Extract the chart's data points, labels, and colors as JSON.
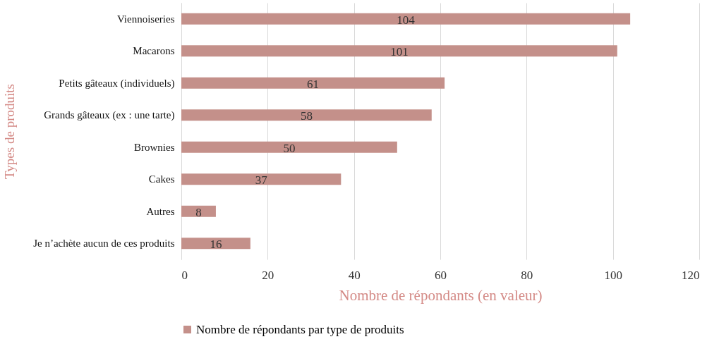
{
  "chart_data": {
    "type": "bar",
    "orientation": "horizontal",
    "ylabel": "Types de produits",
    "xlabel": "Nombre de répondants (en valeur)",
    "categories": [
      "Viennoiseries",
      "Macarons",
      "Petits gâteaux (individuels)",
      "Grands gâteaux (ex : une tarte)",
      "Brownies",
      "Cakes",
      "Autres",
      "Je n’achète aucun de ces produits"
    ],
    "series": [
      {
        "name": "Nombre de répondants par type de produits",
        "color": "#c4908a",
        "values": [
          104,
          101,
          61,
          58,
          50,
          37,
          8,
          16
        ]
      }
    ],
    "xlim": [
      0,
      120
    ],
    "xticks": [
      0,
      20,
      40,
      60,
      80,
      100,
      120
    ],
    "grid": "x",
    "legend": "bottom",
    "data_labels": true
  }
}
